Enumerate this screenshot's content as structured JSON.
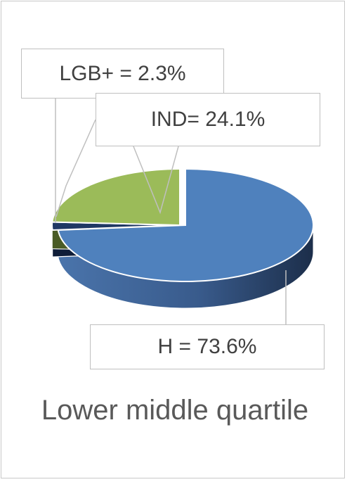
{
  "chart_data": {
    "type": "pie",
    "style": "3d",
    "title": "Lower middle quartile",
    "slices": [
      {
        "name": "H",
        "value": 73.6,
        "label": "H = 73.6%",
        "color": "#4f81bd"
      },
      {
        "name": "LGB+",
        "value": 2.3,
        "label": "LGB+ = 2.3%",
        "color": "#1f3864"
      },
      {
        "name": "IND",
        "value": 24.1,
        "label": "IND= 24.1%",
        "color": "#9bbb59"
      }
    ]
  }
}
